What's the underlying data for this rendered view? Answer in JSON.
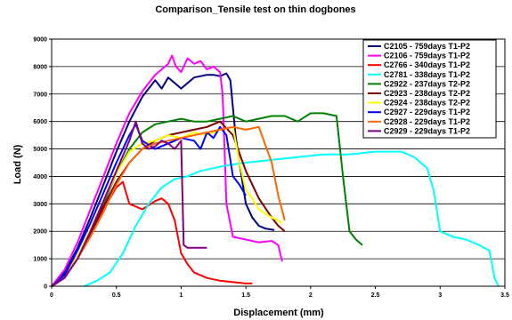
{
  "chart_data": {
    "type": "line",
    "title": "Comparison_Tensile test on thin dogbones",
    "xlabel": "Displacement (mm)",
    "ylabel": "Load (N)",
    "xlim": [
      0,
      3.5
    ],
    "ylim": [
      0,
      9000
    ],
    "xticks": [
      0,
      0.5,
      1,
      1.5,
      2,
      2.5,
      3,
      3.5
    ],
    "yticks": [
      0,
      1000,
      2000,
      3000,
      4000,
      5000,
      6000,
      7000,
      8000,
      9000
    ],
    "xtick_labels": [
      "0",
      "0.5",
      "1",
      "1.5",
      "2",
      "2.5",
      "3",
      "3.5"
    ],
    "ytick_labels": [
      "0",
      "1000",
      "2000",
      "3000",
      "4000",
      "5000",
      "6000",
      "7000",
      "8000",
      "9000"
    ],
    "grid": {
      "horizontal": true,
      "vertical": false
    },
    "legend_position": "top-right",
    "series": [
      {
        "name": "C2105 - 759days T1-P2",
        "color": "#000080",
        "x": [
          0,
          0.1,
          0.2,
          0.3,
          0.4,
          0.5,
          0.6,
          0.7,
          0.8,
          0.85,
          0.9,
          0.95,
          1.0,
          1.05,
          1.1,
          1.15,
          1.2,
          1.25,
          1.3,
          1.35,
          1.38,
          1.4,
          1.42,
          1.45,
          1.5,
          1.55,
          1.6,
          1.65,
          1.72
        ],
        "y": [
          0,
          500,
          1400,
          2500,
          3700,
          4900,
          6000,
          6900,
          7500,
          7200,
          7600,
          7400,
          7200,
          7400,
          7600,
          7650,
          7700,
          7700,
          7650,
          7750,
          7500,
          6500,
          5500,
          4500,
          3000,
          2500,
          2200,
          2100,
          2050
        ]
      },
      {
        "name": "C2106 - 759days T1-P2",
        "color": "#FF00FF",
        "x": [
          0,
          0.1,
          0.2,
          0.3,
          0.4,
          0.5,
          0.6,
          0.7,
          0.8,
          0.9,
          0.93,
          0.96,
          1.0,
          1.05,
          1.1,
          1.15,
          1.2,
          1.25,
          1.3,
          1.32,
          1.35,
          1.4,
          1.5,
          1.6,
          1.7,
          1.75,
          1.78
        ],
        "y": [
          0,
          600,
          1600,
          2800,
          4000,
          5200,
          6300,
          7100,
          7700,
          8100,
          8400,
          8000,
          7800,
          8300,
          8100,
          8200,
          7900,
          8000,
          7800,
          7000,
          3000,
          1800,
          1700,
          1600,
          1650,
          1500,
          900
        ]
      },
      {
        "name": "C2766 - 340days T1-P2",
        "color": "#FF0000",
        "x": [
          0,
          0.1,
          0.2,
          0.3,
          0.4,
          0.5,
          0.55,
          0.6,
          0.7,
          0.8,
          0.85,
          0.9,
          0.95,
          1.0,
          1.05,
          1.1,
          1.2,
          1.3,
          1.4,
          1.5,
          1.55
        ],
        "y": [
          0,
          400,
          1100,
          1900,
          2800,
          3600,
          3800,
          3000,
          2800,
          3100,
          3200,
          3000,
          2400,
          1200,
          800,
          500,
          300,
          200,
          150,
          100,
          100
        ]
      },
      {
        "name": "C2781 - 338days T1-P2",
        "color": "#00FFFF",
        "x": [
          0.25,
          0.35,
          0.45,
          0.55,
          0.65,
          0.75,
          0.85,
          0.95,
          1.05,
          1.15,
          1.25,
          1.35,
          1.5,
          1.7,
          1.9,
          2.1,
          2.3,
          2.5,
          2.7,
          2.8,
          2.9,
          2.95,
          3.0,
          3.1,
          3.2,
          3.3,
          3.38,
          3.4,
          3.42,
          3.45
        ],
        "y": [
          0,
          200,
          500,
          1200,
          2200,
          3000,
          3600,
          3900,
          4000,
          4200,
          4300,
          4400,
          4500,
          4600,
          4700,
          4800,
          4800,
          4900,
          4900,
          4700,
          4300,
          3500,
          2000,
          1800,
          1700,
          1500,
          1300,
          800,
          300,
          0
        ]
      },
      {
        "name": "C2922 - 237days T2-P2",
        "color": "#008000",
        "x": [
          0,
          0.1,
          0.2,
          0.3,
          0.4,
          0.5,
          0.6,
          0.7,
          0.8,
          0.9,
          1.0,
          1.1,
          1.2,
          1.3,
          1.4,
          1.5,
          1.6,
          1.7,
          1.8,
          1.9,
          2.0,
          2.1,
          2.2,
          2.25,
          2.3,
          2.35,
          2.4
        ],
        "y": [
          0,
          350,
          1100,
          2000,
          3000,
          4100,
          5000,
          5600,
          5900,
          6000,
          6100,
          6000,
          6000,
          6100,
          6200,
          6000,
          6100,
          6200,
          6200,
          6000,
          6300,
          6300,
          6200,
          4000,
          2000,
          1700,
          1500
        ]
      },
      {
        "name": "C2923 - 238days T2-P2",
        "color": "#800000",
        "x": [
          0,
          0.1,
          0.2,
          0.3,
          0.4,
          0.5,
          0.6,
          0.7,
          0.8,
          0.9,
          1.0,
          1.1,
          1.2,
          1.3,
          1.4,
          1.5,
          1.6,
          1.7,
          1.75,
          1.8
        ],
        "y": [
          0,
          300,
          1000,
          1900,
          2900,
          3800,
          4500,
          5000,
          5300,
          5500,
          5600,
          5700,
          5800,
          6000,
          5500,
          4200,
          3200,
          2500,
          2200,
          2000
        ]
      },
      {
        "name": "C2924 - 238days T2-P2",
        "color": "#FFFF00",
        "x": [
          0,
          0.1,
          0.2,
          0.3,
          0.4,
          0.5,
          0.6,
          0.7,
          0.8,
          0.9,
          1.0,
          1.1,
          1.2,
          1.3,
          1.4,
          1.45,
          1.5,
          1.55,
          1.6,
          1.7,
          1.75,
          1.78
        ],
        "y": [
          0,
          350,
          1100,
          2100,
          3100,
          4100,
          4900,
          5200,
          5300,
          5500,
          5400,
          5600,
          5500,
          5700,
          5800,
          4500,
          3500,
          3200,
          2800,
          2500,
          2400,
          2300
        ]
      },
      {
        "name": "C2927 - 229days T1-P2",
        "color": "#0000FF",
        "x": [
          0,
          0.1,
          0.2,
          0.3,
          0.4,
          0.5,
          0.6,
          0.65,
          0.7,
          0.8,
          0.9,
          1.0,
          1.1,
          1.15,
          1.2,
          1.25,
          1.3,
          1.35,
          1.4,
          1.45,
          1.5
        ],
        "y": [
          0,
          400,
          1300,
          2300,
          3400,
          4500,
          5500,
          5900,
          5300,
          5000,
          5200,
          5400,
          5300,
          5000,
          5600,
          5400,
          5800,
          5500,
          4000,
          3700,
          3300
        ]
      },
      {
        "name": "C2928 - 229days T1-P2",
        "color": "#FF6600",
        "x": [
          0,
          0.1,
          0.2,
          0.3,
          0.4,
          0.5,
          0.6,
          0.7,
          0.8,
          0.9,
          1.0,
          1.1,
          1.2,
          1.3,
          1.4,
          1.5,
          1.6,
          1.7,
          1.75,
          1.8
        ],
        "y": [
          0,
          300,
          1000,
          1800,
          2700,
          3700,
          4500,
          5000,
          5200,
          5300,
          5400,
          5500,
          5600,
          5700,
          5800,
          5700,
          5800,
          4500,
          3300,
          2400
        ]
      },
      {
        "name": "C2929 - 229days T1-P2",
        "color": "#800080",
        "x": [
          0,
          0.1,
          0.2,
          0.3,
          0.4,
          0.5,
          0.6,
          0.65,
          0.7,
          0.75,
          0.8,
          0.85,
          0.9,
          0.95,
          1.0,
          1.02,
          1.05,
          1.1,
          1.15,
          1.2
        ],
        "y": [
          0,
          300,
          1000,
          2000,
          3100,
          4200,
          5300,
          6000,
          5200,
          5000,
          5100,
          5300,
          5200,
          5000,
          5300,
          1500,
          1400,
          1400,
          1400,
          1400
        ]
      }
    ]
  }
}
